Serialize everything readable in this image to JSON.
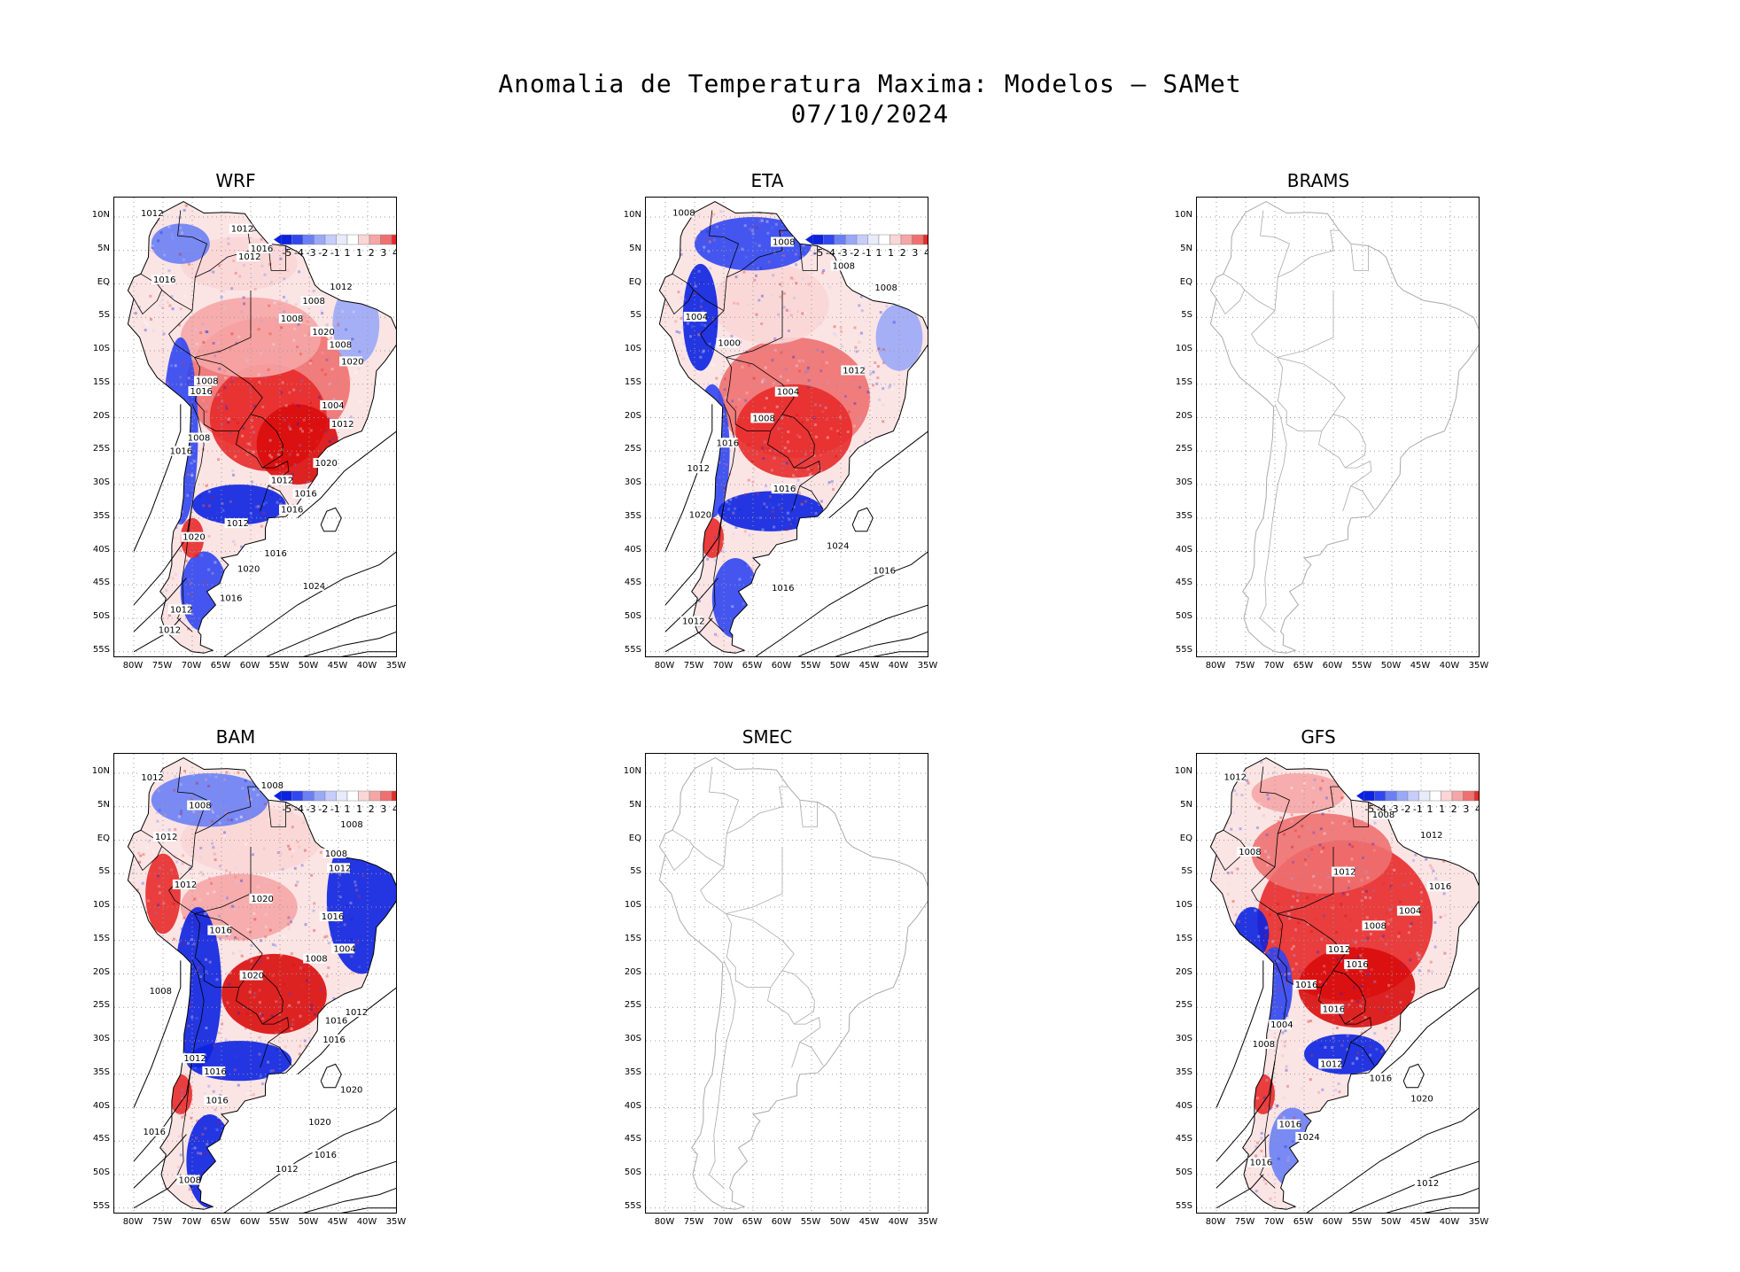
{
  "title_line1": "Anomalia de Temperatura Maxima: Modelos — SAMet",
  "title_line2": "07/10/2024",
  "lat_ticks": [
    "10N",
    "5N",
    "EQ",
    "5S",
    "10S",
    "15S",
    "20S",
    "25S",
    "30S",
    "35S",
    "40S",
    "45S",
    "50S",
    "55S"
  ],
  "lon_ticks": [
    "80W",
    "75W",
    "70W",
    "65W",
    "60W",
    "55W",
    "50W",
    "45W",
    "40W",
    "35W"
  ],
  "legend": {
    "labels": [
      "-5",
      "-4",
      "-3",
      "-2",
      "-1",
      "1",
      "1",
      "2",
      "3",
      "4",
      "5"
    ],
    "colors": [
      "#0b22e0",
      "#3046f0",
      "#6a7ff5",
      "#9aa8f7",
      "#c6cdfa",
      "#e8ebfc",
      "#ffffff",
      "#fbd6d6",
      "#f6a6a6",
      "#f07070",
      "#e82a2a",
      "#d90c0c"
    ]
  },
  "panels": [
    {
      "name": "WRF",
      "has_data": true,
      "isobars": [
        "1012",
        "1012",
        "1016",
        "1012",
        "1016",
        "1012",
        "1008",
        "1008",
        "1020",
        "1008",
        "1020",
        "1008",
        "1016",
        "1004",
        "1012",
        "1008",
        "1016",
        "1020",
        "1012",
        "1016",
        "1016",
        "1012",
        "1020",
        "1016",
        "1020",
        "1024",
        "1016",
        "1012",
        "1012"
      ]
    },
    {
      "name": "ETA",
      "has_data": true,
      "isobars": [
        "1008",
        "1008",
        "1008",
        "1008",
        "1004",
        "1000",
        "1012",
        "1004",
        "1008",
        "1016",
        "1012",
        "1016",
        "1020",
        "1024",
        "1016",
        "1016",
        "1012"
      ]
    },
    {
      "name": "BRAMS",
      "has_data": false,
      "isobars": []
    },
    {
      "name": "BAM",
      "has_data": true,
      "isobars": [
        "1012",
        "1008",
        "1008",
        "1008",
        "1012",
        "1008",
        "1012",
        "1012",
        "1020",
        "1016",
        "1016",
        "1004",
        "1008",
        "1020",
        "1008",
        "1012",
        "1016",
        "1016",
        "1012",
        "1016",
        "1020",
        "1016",
        "1020",
        "1016",
        "1016",
        "1012",
        "1008"
      ]
    },
    {
      "name": "SMEC",
      "has_data": false,
      "isobars": []
    },
    {
      "name": "GFS",
      "has_data": true,
      "isobars": [
        "1012",
        "1016",
        "1008",
        "1012",
        "1008",
        "1012",
        "1016",
        "1004",
        "1008",
        "1012",
        "1016",
        "1016",
        "1016",
        "1004",
        "1008",
        "1012",
        "1016",
        "1020",
        "1016",
        "1024",
        "1016",
        "1012"
      ]
    }
  ]
}
